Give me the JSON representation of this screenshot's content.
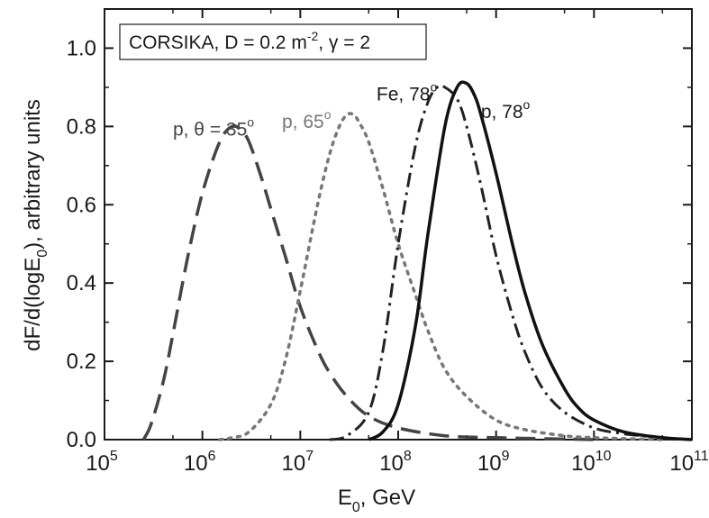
{
  "chart_data": {
    "type": "line",
    "title": "",
    "xlabel": "E0, GeV",
    "ylabel": "dF/d(logE0), arbitrary units",
    "x_scale": "log",
    "xlim": [
      100000,
      100000000000
    ],
    "ylim": [
      0.0,
      1.1
    ],
    "x_ticks": [
      {
        "base": "10",
        "exp": "5"
      },
      {
        "base": "10",
        "exp": "6"
      },
      {
        "base": "10",
        "exp": "7"
      },
      {
        "base": "10",
        "exp": "8"
      },
      {
        "base": "10",
        "exp": "9"
      },
      {
        "base": "10",
        "exp": "10"
      },
      {
        "base": "10",
        "exp": "11"
      }
    ],
    "y_ticks": [
      "0.0",
      "0.2",
      "0.4",
      "0.6",
      "0.8",
      "1.0"
    ],
    "grid": false,
    "legend_box": {
      "text": "CORSIKA, D = 0.2 m",
      "exp": "-2",
      "tail": ", γ = 2"
    },
    "series": [
      {
        "label": "p, θ = 35°",
        "style": "dashed",
        "color": "#444444",
        "x": [
          250000,
          300000,
          400000,
          500000,
          700000,
          1000000,
          1500000,
          2000000,
          2500000,
          3000000,
          4000000,
          5000000,
          7000000,
          10000000,
          15000000,
          20000000,
          30000000,
          50000000,
          100000000,
          300000000,
          1000000000,
          10000000000
        ],
        "y": [
          0.0,
          0.04,
          0.15,
          0.27,
          0.46,
          0.63,
          0.76,
          0.8,
          0.79,
          0.76,
          0.67,
          0.59,
          0.47,
          0.34,
          0.23,
          0.17,
          0.11,
          0.06,
          0.03,
          0.01,
          0.005,
          0.0
        ]
      },
      {
        "label": "p, 65°",
        "style": "dotted",
        "color": "#777777",
        "x": [
          1500000,
          2000000,
          3000000,
          5000000,
          7000000,
          10000000,
          15000000,
          20000000,
          25000000,
          30000000,
          35000000,
          40000000,
          50000000,
          70000000,
          100000000,
          150000000,
          200000000,
          300000000,
          500000000,
          1000000000,
          2000000000,
          5000000000,
          10000000000,
          50000000000
        ],
        "y": [
          0.0,
          0.005,
          0.02,
          0.09,
          0.2,
          0.38,
          0.6,
          0.73,
          0.8,
          0.83,
          0.83,
          0.81,
          0.76,
          0.64,
          0.5,
          0.37,
          0.28,
          0.18,
          0.11,
          0.05,
          0.025,
          0.01,
          0.005,
          0.0
        ]
      },
      {
        "label": "Fe, 78°",
        "style": "dashdot",
        "color": "#222222",
        "x": [
          20000000,
          30000000,
          50000000,
          70000000,
          100000000,
          150000000,
          200000000,
          250000000,
          300000000,
          400000000,
          500000000,
          700000000,
          1000000000,
          1500000000,
          2000000000,
          3000000000,
          5000000000,
          10000000000,
          20000000000,
          50000000000,
          100000000000
        ],
        "y": [
          0.0,
          0.01,
          0.07,
          0.23,
          0.5,
          0.75,
          0.86,
          0.9,
          0.9,
          0.87,
          0.8,
          0.65,
          0.47,
          0.31,
          0.22,
          0.13,
          0.07,
          0.03,
          0.015,
          0.005,
          0.0
        ]
      },
      {
        "label": "p, 78°",
        "style": "solid",
        "color": "#111111",
        "x": [
          50000000,
          70000000,
          100000000,
          150000000,
          200000000,
          300000000,
          400000000,
          500000000,
          600000000,
          700000000,
          1000000000,
          1500000000,
          2000000000,
          3000000000,
          5000000000,
          7000000000,
          10000000000,
          20000000000,
          50000000000,
          100000000000
        ],
        "y": [
          0.0,
          0.02,
          0.09,
          0.29,
          0.52,
          0.8,
          0.9,
          0.91,
          0.88,
          0.83,
          0.68,
          0.49,
          0.37,
          0.24,
          0.13,
          0.08,
          0.05,
          0.02,
          0.005,
          0.0
        ]
      }
    ],
    "annotations": [
      {
        "text": "p, θ = 35",
        "deg": "o",
        "anchor_x": 500000,
        "anchor_y": 0.795,
        "color": "#444444"
      },
      {
        "text": "p, 65",
        "deg": "o",
        "anchor_x": 6500000,
        "anchor_y": 0.815,
        "color": "#777777"
      },
      {
        "text": "Fe, 78",
        "deg": "o",
        "anchor_x": 60000000,
        "anchor_y": 0.885,
        "color": "#1a1a1a"
      },
      {
        "text": "p, 78",
        "deg": "o",
        "anchor_x": 700000000,
        "anchor_y": 0.84,
        "color": "#1a1a1a"
      }
    ]
  }
}
